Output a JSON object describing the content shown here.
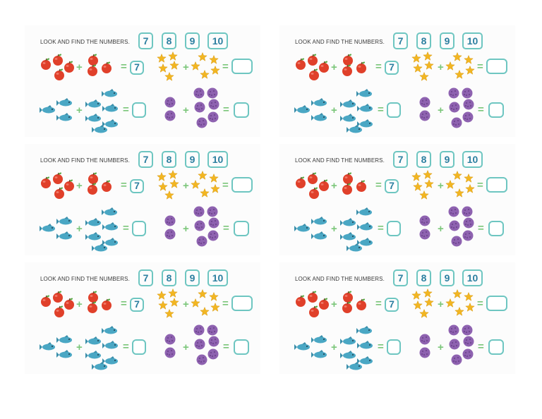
{
  "colors": {
    "accent": "#6ec6c1",
    "number": "#2c7fa0",
    "plus": "#7bc67a",
    "apple": "#e0402a",
    "star": "#f2b622",
    "fish": "#4aa7c4",
    "ball": "#8e62b0"
  },
  "worksheet": {
    "title": "LOOK AND FIND THE NUMBERS.",
    "numbers": [
      "7",
      "8",
      "9",
      "10"
    ],
    "plus": "+",
    "equals": "=",
    "apples": {
      "left_count": 4,
      "right_count": 3,
      "answer": "7"
    },
    "stars": {
      "left_count": 5,
      "right_count": 5,
      "answer": ""
    },
    "fish": {
      "left_count": 3,
      "right_count": 6,
      "answer": ""
    },
    "balls": {
      "left_count": 3,
      "right_count": 6,
      "answer": ""
    },
    "icons": [
      "apple-icon",
      "star-icon",
      "fish-icon",
      "ball-icon"
    ]
  }
}
